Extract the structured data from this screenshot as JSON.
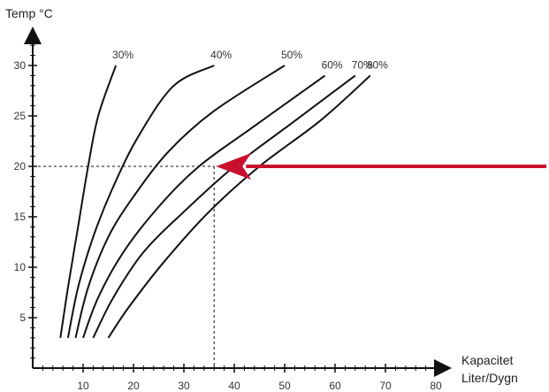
{
  "chart_data": {
    "type": "line",
    "ylabel": "Temp °C",
    "xlabel_line1": "Kapacitet",
    "xlabel_line2": "Liter/Dygn",
    "xlim": [
      0,
      82
    ],
    "ylim": [
      0,
      34
    ],
    "x_ticks": [
      10,
      20,
      30,
      40,
      50,
      60,
      70,
      80
    ],
    "y_ticks": [
      5,
      10,
      15,
      20,
      25,
      30
    ],
    "grid": false,
    "series": [
      {
        "name": "30%",
        "points": [
          [
            5.5,
            3
          ],
          [
            7,
            8
          ],
          [
            9,
            14
          ],
          [
            11,
            20
          ],
          [
            13,
            25
          ],
          [
            16.5,
            30
          ]
        ]
      },
      {
        "name": "40%",
        "points": [
          [
            7,
            3
          ],
          [
            9,
            8
          ],
          [
            12,
            13
          ],
          [
            16,
            18
          ],
          [
            21,
            23
          ],
          [
            28,
            28
          ],
          [
            36,
            30
          ]
        ]
      },
      {
        "name": "50%",
        "points": [
          [
            8.5,
            3
          ],
          [
            11,
            8
          ],
          [
            15,
            13
          ],
          [
            20,
            17
          ],
          [
            27,
            21.5
          ],
          [
            36,
            25.5
          ],
          [
            50,
            30
          ]
        ]
      },
      {
        "name": "60%",
        "points": [
          [
            10,
            3
          ],
          [
            13,
            7
          ],
          [
            18,
            11.5
          ],
          [
            25,
            16
          ],
          [
            33,
            20
          ],
          [
            44,
            24
          ],
          [
            58,
            29
          ]
        ]
      },
      {
        "name": "70%",
        "points": [
          [
            12,
            3
          ],
          [
            16,
            7
          ],
          [
            22,
            11.5
          ],
          [
            30,
            15.5
          ],
          [
            40,
            20
          ],
          [
            52,
            24.5
          ],
          [
            64,
            29
          ]
        ]
      },
      {
        "name": "80%",
        "points": [
          [
            15,
            3
          ],
          [
            19,
            6
          ],
          [
            26,
            10.5
          ],
          [
            35,
            15.5
          ],
          [
            45,
            20
          ],
          [
            57,
            24.5
          ],
          [
            67,
            29
          ]
        ]
      }
    ],
    "annotation": {
      "reference_point": [
        36,
        20
      ],
      "arrow_color": "#c8102e",
      "dashed_guides": true
    }
  }
}
